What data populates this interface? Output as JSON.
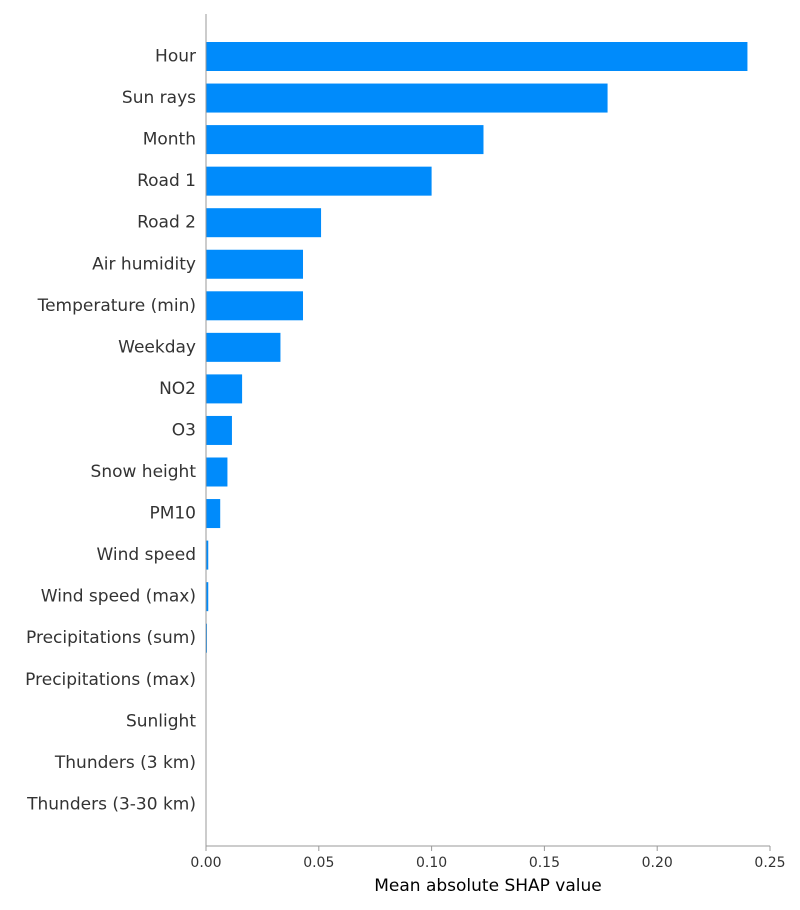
{
  "chart_data": {
    "type": "bar",
    "orientation": "horizontal",
    "title": "",
    "xlabel": "Mean absolute SHAP value",
    "ylabel": "",
    "xlim": [
      0,
      0.25
    ],
    "xticks": [
      0.0,
      0.05,
      0.1,
      0.15,
      0.2,
      0.25
    ],
    "xtick_labels": [
      "0.00",
      "0.05",
      "0.10",
      "0.15",
      "0.20",
      "0.25"
    ],
    "grid": false,
    "bar_color": "#008bfb",
    "categories": [
      "Hour",
      "Sun rays",
      "Month",
      "Road 1",
      "Road 2",
      "Air humidity",
      "Temperature (min)",
      "Weekday",
      "NO2",
      "O3",
      "Snow height",
      "PM10",
      "Wind speed",
      "Wind speed (max)",
      "Precipitations (sum)",
      "Precipitations (max)",
      "Sunlight",
      "Thunders (3 km)",
      "Thunders (3-30 km)"
    ],
    "values": [
      0.24,
      0.178,
      0.123,
      0.1,
      0.051,
      0.043,
      0.043,
      0.033,
      0.016,
      0.0115,
      0.0095,
      0.0063,
      0.001,
      0.001,
      0.0004,
      0.0,
      0.0,
      0.0,
      0.0
    ]
  }
}
